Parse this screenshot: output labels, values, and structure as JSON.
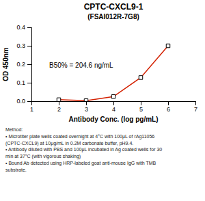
{
  "chart_data": {
    "type": "line",
    "title": "CPTC-CXCL9-1",
    "subtitle": "(FSAI012R-7G8)",
    "xlabel": "Antibody Conc. (log pg/mL)",
    "ylabel": "OD 450nm",
    "x": [
      2,
      3,
      4,
      5,
      6
    ],
    "values": [
      0.008,
      0.003,
      0.025,
      0.128,
      0.3
    ],
    "color": "#d42000",
    "marker": "square",
    "xlim": [
      1,
      7
    ],
    "ylim": [
      0,
      0.4
    ],
    "xticks": [
      1,
      2,
      3,
      4,
      5,
      6,
      7
    ],
    "yticks": [
      {
        "value": 0.0,
        "label": "0.0"
      },
      0.1,
      0.2,
      0.3,
      0.4
    ],
    "annotations": [
      {
        "text": "B50% = 204.6 ng/mL",
        "x": 1.65,
        "y": 0.192
      },
      {
        "text": "Method:\n• Microtiter plate wells coated overnight at 4°C  with 100μL of rAg11056\n(CPTC-CXCL9) at 10μg/mL in 0.2M carbonate buffer, pH9.4.\n• Antibody diluted with PBS and 100μL incubated in Ag coated wells for 30\nmin at 37°C (with vigorous shaking)\n• Bound Ab detected using HRP-labeled goat anti-mouse IgG with TMB\nsubstrate."
      }
    ]
  }
}
